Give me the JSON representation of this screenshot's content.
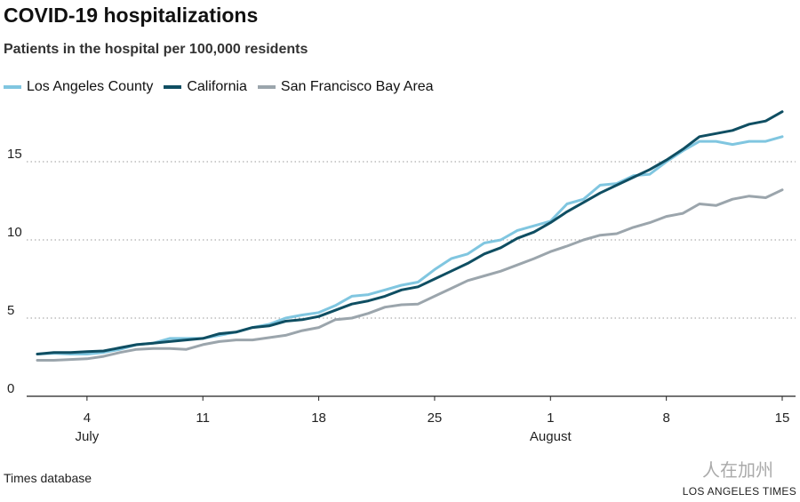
{
  "chart_data": {
    "type": "line",
    "title": "COVID-19 hospitalizations",
    "subtitle": "Patients in the hospital per 100,000 residents",
    "xlabel": "",
    "ylabel": "",
    "x_start": "July 1",
    "x_end": "August 15",
    "days": 46,
    "ylim": [
      0,
      18.5
    ],
    "yticks": [
      0,
      5,
      10,
      15
    ],
    "xticks": [
      {
        "day": 4,
        "label": "4",
        "month": "July"
      },
      {
        "day": 11,
        "label": "11",
        "month": ""
      },
      {
        "day": 18,
        "label": "18",
        "month": ""
      },
      {
        "day": 25,
        "label": "25",
        "month": ""
      },
      {
        "day": 32,
        "label": "1",
        "month": "August"
      },
      {
        "day": 39,
        "label": "8",
        "month": ""
      },
      {
        "day": 46,
        "label": "15",
        "month": ""
      }
    ],
    "grid": true,
    "legend_placement": "top-left",
    "series": [
      {
        "name": "Los Angeles County",
        "color": "#80c6e0",
        "values": [
          2.7,
          2.75,
          2.7,
          2.7,
          2.8,
          3.0,
          3.3,
          3.4,
          3.7,
          3.7,
          3.7,
          3.9,
          4.1,
          4.4,
          4.6,
          5.0,
          5.2,
          5.35,
          5.8,
          6.4,
          6.5,
          6.8,
          7.1,
          7.3,
          8.1,
          8.8,
          9.1,
          9.8,
          10.0,
          10.6,
          10.9,
          11.2,
          12.3,
          12.6,
          13.5,
          13.6,
          14.1,
          14.2,
          15.0,
          15.7,
          16.3,
          16.3,
          16.1,
          16.3,
          16.3,
          16.6
        ]
      },
      {
        "name": "California",
        "color": "#0f4e62",
        "values": [
          2.7,
          2.8,
          2.8,
          2.85,
          2.9,
          3.1,
          3.3,
          3.4,
          3.5,
          3.6,
          3.7,
          4.0,
          4.1,
          4.4,
          4.5,
          4.8,
          4.9,
          5.1,
          5.5,
          5.9,
          6.1,
          6.4,
          6.8,
          7.0,
          7.5,
          8.0,
          8.5,
          9.1,
          9.5,
          10.1,
          10.5,
          11.1,
          11.8,
          12.4,
          13.0,
          13.5,
          14.0,
          14.5,
          15.1,
          15.8,
          16.6,
          16.8,
          17.0,
          17.4,
          17.6,
          18.2
        ]
      },
      {
        "name": "San Francisco Bay Area",
        "color": "#9ba5ac",
        "values": [
          2.3,
          2.3,
          2.35,
          2.4,
          2.55,
          2.8,
          3.0,
          3.05,
          3.05,
          3.0,
          3.3,
          3.5,
          3.6,
          3.6,
          3.75,
          3.9,
          4.2,
          4.4,
          4.9,
          5.0,
          5.3,
          5.7,
          5.85,
          5.9,
          6.4,
          6.9,
          7.4,
          7.7,
          8.0,
          8.4,
          8.8,
          9.25,
          9.6,
          10.0,
          10.3,
          10.4,
          10.8,
          11.1,
          11.5,
          11.7,
          12.3,
          12.2,
          12.6,
          12.8,
          12.7,
          13.2
        ]
      }
    ]
  },
  "footer": {
    "source": "Times database",
    "brand": "LOS ANGELES TIMES",
    "watermark": "人在加州"
  }
}
